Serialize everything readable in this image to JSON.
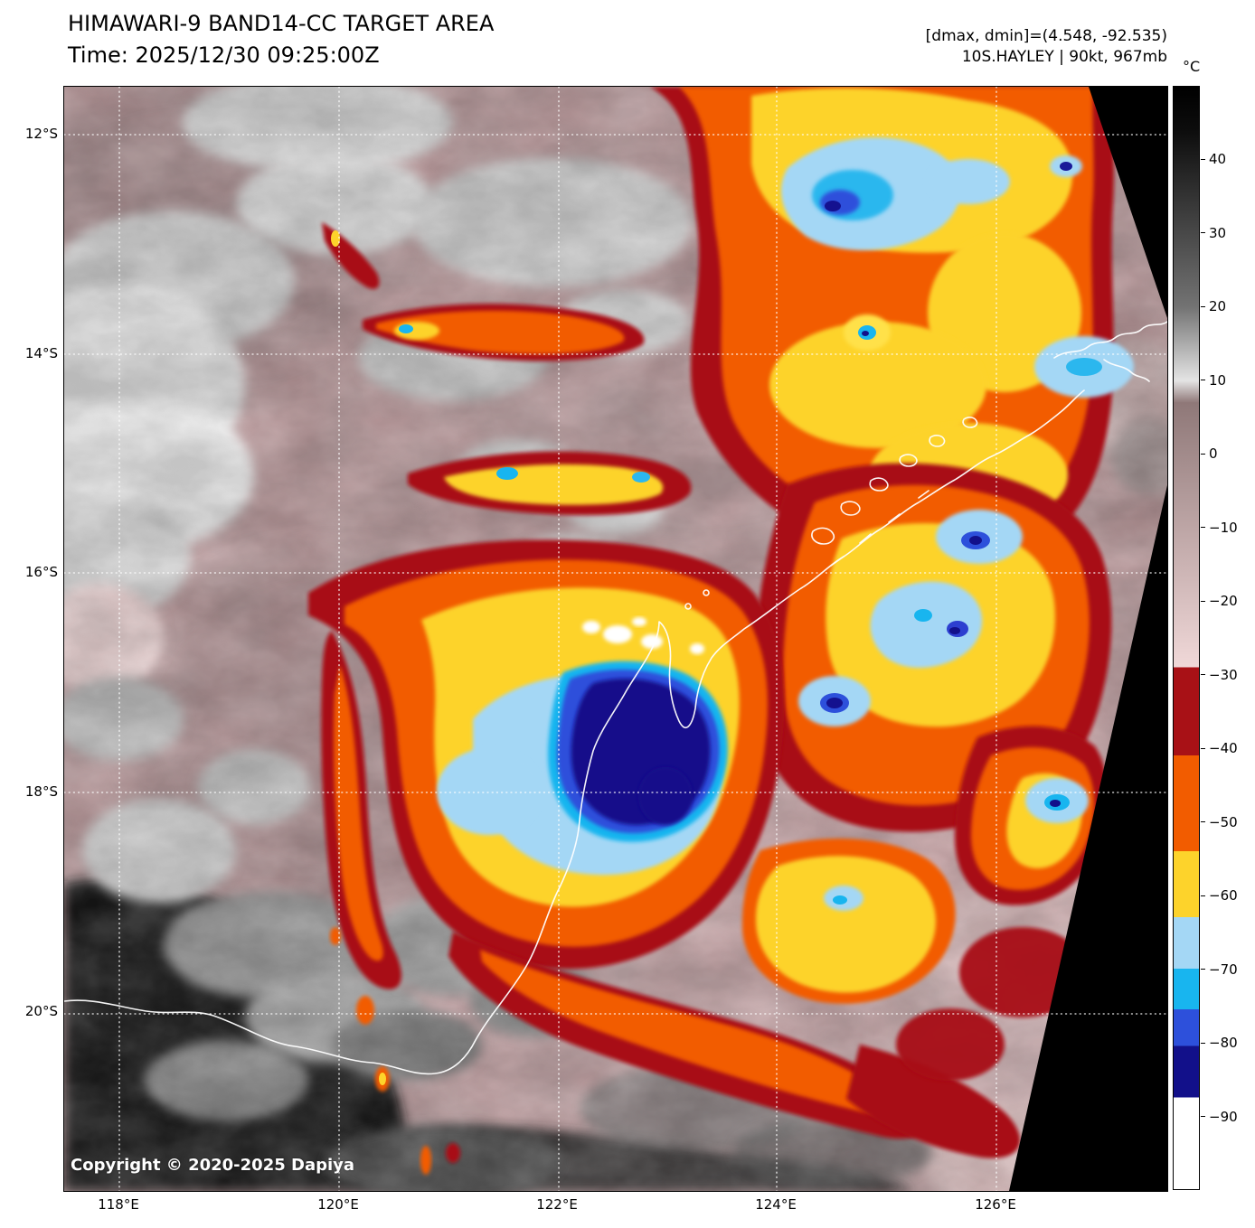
{
  "header": {
    "title": "HIMAWARI-9 BAND14-CC TARGET AREA",
    "time": "Time: 2025/12/30 09:25:00Z",
    "range_info": "[dmax, dmin]=(4.548, -92.535)",
    "storm_info": "10S.HAYLEY | 90kt, 967mb"
  },
  "map": {
    "copyright": "Copyright © 2020-2025 Dapiya",
    "lat_ticks": [
      "12°S",
      "14°S",
      "16°S",
      "18°S",
      "20°S"
    ],
    "lon_ticks": [
      "118°E",
      "120°E",
      "122°E",
      "124°E",
      "126°E"
    ]
  },
  "colorbar": {
    "unit": "°C",
    "min": -100,
    "max": 50,
    "tick_values": [
      40,
      30,
      20,
      10,
      0,
      -10,
      -20,
      -30,
      -40,
      -50,
      -60,
      -70,
      -80,
      -90
    ],
    "tick_labels": [
      "40",
      "30",
      "20",
      "10",
      "0",
      "−10",
      "−20",
      "−30",
      "−40",
      "−50",
      "−60",
      "−70",
      "−80",
      "−90"
    ],
    "stops": [
      {
        "v": 50,
        "c": "#000000"
      },
      {
        "v": 44,
        "c": "#0d0d0d"
      },
      {
        "v": 20,
        "c": "#737373"
      },
      {
        "v": 10,
        "c": "#e4e4e4"
      },
      {
        "v": 7,
        "c": "#8f7878"
      },
      {
        "v": -29,
        "c": "#f0d8d8"
      },
      {
        "v": -29,
        "c": "#a81116"
      },
      {
        "v": -41,
        "c": "#a81116"
      },
      {
        "v": -41,
        "c": "#f25c00"
      },
      {
        "v": -54,
        "c": "#f25c00"
      },
      {
        "v": -54,
        "c": "#fdd32b"
      },
      {
        "v": -63,
        "c": "#fdd32b"
      },
      {
        "v": -63,
        "c": "#a4d7f5"
      },
      {
        "v": -70,
        "c": "#a4d7f5"
      },
      {
        "v": -70,
        "c": "#18b5ef"
      },
      {
        "v": -75.5,
        "c": "#18b5ef"
      },
      {
        "v": -75.5,
        "c": "#2d50db"
      },
      {
        "v": -80.5,
        "c": "#2d50db"
      },
      {
        "v": -80.5,
        "c": "#12108a"
      },
      {
        "v": -87.5,
        "c": "#12108a"
      },
      {
        "v": -87.5,
        "c": "#ffffff"
      },
      {
        "v": -100,
        "c": "#ffffff"
      }
    ]
  }
}
